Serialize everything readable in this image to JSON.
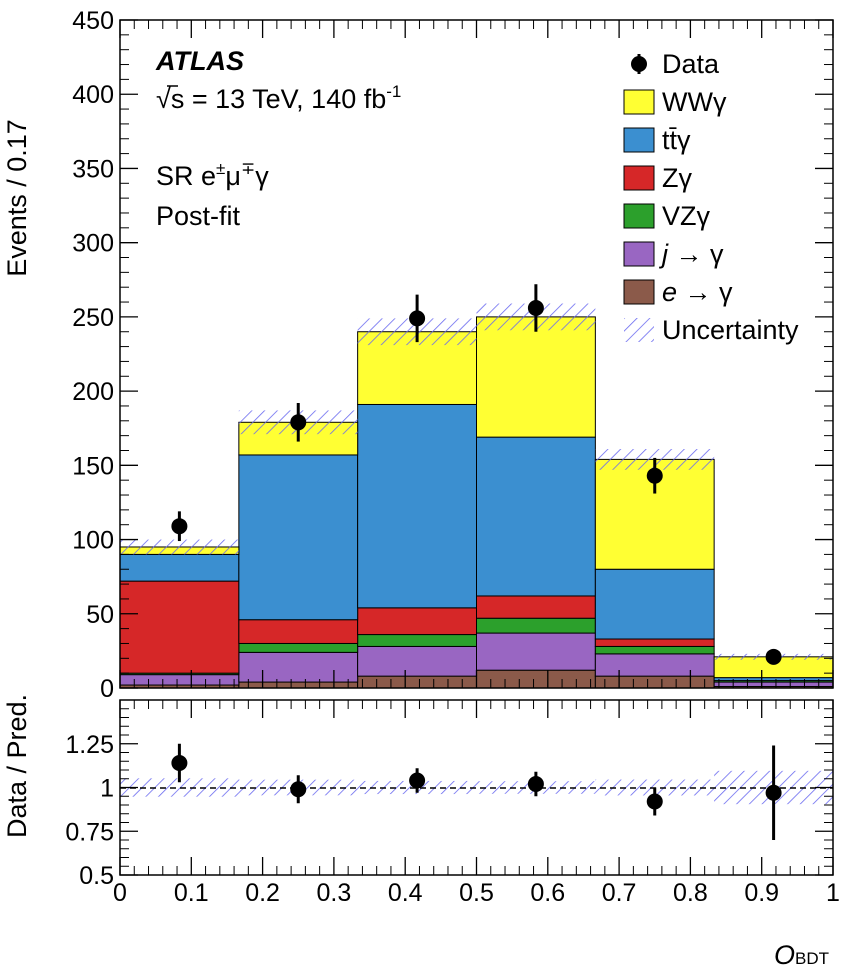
{
  "chart_data": {
    "type": "stacked-histogram",
    "experiment": "ATLAS",
    "energy_label": "√s = 13 TeV, 140 fb",
    "energy_sup": "-1",
    "region_prefix": "SR e",
    "region_sup1": "±",
    "region_mu": "μ",
    "region_sup2": "∓",
    "region_suffix": "γ",
    "fit_label": "Post-fit",
    "ylabel": "Events / 0.17",
    "ratio_ylabel": "Data / Pred.",
    "xlabel_main": "O",
    "xlabel_sub": "BDT",
    "bin_edges": [
      0,
      0.1667,
      0.3333,
      0.5,
      0.6667,
      0.8333,
      1.0
    ],
    "ylim": [
      0,
      450
    ],
    "yticks": [
      "0",
      "50",
      "100",
      "150",
      "200",
      "250",
      "300",
      "350",
      "400",
      "450"
    ],
    "ratio_ylim": [
      0.5,
      1.5
    ],
    "ratio_yticks": [
      "0.5",
      "0.75",
      "1",
      "1.25"
    ],
    "xticks": [
      "0",
      "0.1",
      "0.2",
      "0.3",
      "0.4",
      "0.5",
      "0.6",
      "0.7",
      "0.8",
      "0.9",
      "1"
    ],
    "series": [
      {
        "name": "e → γ",
        "legend_italic": "e",
        "legend_rest": " → γ",
        "color": "#8b5a4a",
        "values": [
          2,
          4,
          8,
          12,
          8,
          1
        ]
      },
      {
        "name": "j → γ",
        "legend_italic": "j",
        "legend_rest": " → γ",
        "color": "#9966c2",
        "values": [
          7,
          20,
          20,
          25,
          15,
          3
        ]
      },
      {
        "name": "VZγ",
        "color": "#2ca02c",
        "values": [
          1,
          6,
          8,
          10,
          5,
          1
        ]
      },
      {
        "name": "Zγ",
        "color": "#d62728",
        "values": [
          62,
          16,
          18,
          15,
          5,
          0
        ]
      },
      {
        "name": "tt̄γ",
        "color": "#3b8fd0",
        "values": [
          18,
          111,
          137,
          107,
          47,
          2
        ]
      },
      {
        "name": "WWγ",
        "color": "#ffff33",
        "values": [
          5,
          22,
          49,
          81,
          74,
          14
        ]
      }
    ],
    "uncertainty_name": "Uncertainty",
    "uncertainty": [
      5,
      8,
      9,
      9,
      7,
      2
    ],
    "data": {
      "name": "Data",
      "x": [
        0.0833,
        0.25,
        0.4167,
        0.5833,
        0.75,
        0.9167
      ],
      "y": [
        109,
        179,
        249,
        256,
        143,
        21
      ],
      "err": [
        10,
        13,
        16,
        16,
        12,
        4.6
      ]
    },
    "ratio": {
      "x": [
        0.0833,
        0.25,
        0.4167,
        0.5833,
        0.75,
        0.9167
      ],
      "y": [
        1.14,
        0.99,
        1.04,
        1.02,
        0.92,
        0.97
      ],
      "err": [
        0.11,
        0.08,
        0.07,
        0.07,
        0.08,
        0.27
      ]
    }
  }
}
